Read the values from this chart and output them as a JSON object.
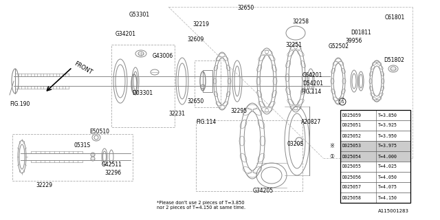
{
  "bg": "#ffffff",
  "lc": "#888888",
  "note": "*Please don't use 2 pieces of T=3.850\nnor 2 pieces of T=4.150 at same time.",
  "part_id": "A115001283",
  "table": [
    [
      "D025059",
      "T=3.850"
    ],
    [
      "D025051",
      "T=3.925"
    ],
    [
      "D025052",
      "T=3.950"
    ],
    [
      "D025053",
      "T=3.975"
    ],
    [
      "D025054",
      "T=4.000"
    ],
    [
      "D025055",
      "T=4.025"
    ],
    [
      "D025056",
      "T=4.050"
    ],
    [
      "D025057",
      "T=4.075"
    ],
    [
      "D025058",
      "T=4.150"
    ]
  ],
  "highlight_rows": [
    3,
    4
  ]
}
